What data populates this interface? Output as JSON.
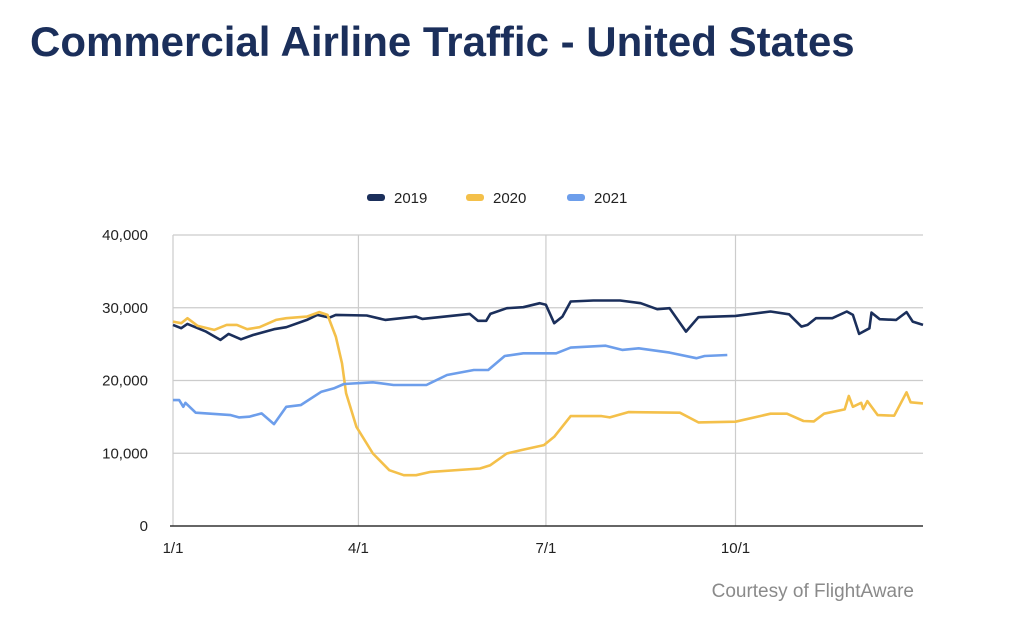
{
  "title": "Commercial Airline Traffic - United States",
  "credit": "Courtesy of FlightAware",
  "chart_data": {
    "type": "line",
    "title": "",
    "xlabel": "",
    "ylabel": "",
    "ylim": [
      0,
      40000
    ],
    "yticks": [
      "0",
      "10,000",
      "20,000",
      "30,000",
      "40,000"
    ],
    "xticks": [
      {
        "date": "01-01",
        "label": "1/1"
      },
      {
        "date": "04-01",
        "label": "4/1"
      },
      {
        "date": "07-01",
        "label": "7/1"
      },
      {
        "date": "10-01",
        "label": "10/1"
      }
    ],
    "xlim": [
      "01-01",
      "12-31"
    ],
    "grid": true,
    "legend": "top",
    "series": [
      {
        "name": "2019",
        "color": "#1b2f5b",
        "points": [
          [
            "01-01",
            27640
          ],
          [
            "01-05",
            27190
          ],
          [
            "01-08",
            27780
          ],
          [
            "01-17",
            26720
          ],
          [
            "01-24",
            25580
          ],
          [
            "01-28",
            26400
          ],
          [
            "02-03",
            25670
          ],
          [
            "02-09",
            26270
          ],
          [
            "02-19",
            27050
          ],
          [
            "02-25",
            27330
          ],
          [
            "03-07",
            28330
          ],
          [
            "03-12",
            29020
          ],
          [
            "03-18",
            28650
          ],
          [
            "03-21",
            29020
          ],
          [
            "04-05",
            28930
          ],
          [
            "04-14",
            28330
          ],
          [
            "04-29",
            28790
          ],
          [
            "05-02",
            28470
          ],
          [
            "05-25",
            29160
          ],
          [
            "05-29",
            28200
          ],
          [
            "06-02",
            28200
          ],
          [
            "06-04",
            29160
          ],
          [
            "06-12",
            29940
          ],
          [
            "06-20",
            30080
          ],
          [
            "06-28",
            30630
          ],
          [
            "07-01",
            30400
          ],
          [
            "07-05",
            27880
          ],
          [
            "07-09",
            28790
          ],
          [
            "07-13",
            30860
          ],
          [
            "07-24",
            30990
          ],
          [
            "08-06",
            30990
          ],
          [
            "08-16",
            30630
          ],
          [
            "08-24",
            29800
          ],
          [
            "08-30",
            29940
          ],
          [
            "09-07",
            26720
          ],
          [
            "09-13",
            28700
          ],
          [
            "10-01",
            28880
          ],
          [
            "10-18",
            29480
          ],
          [
            "10-27",
            29100
          ],
          [
            "11-02",
            27410
          ],
          [
            "11-05",
            27640
          ],
          [
            "11-09",
            28560
          ],
          [
            "11-17",
            28560
          ],
          [
            "11-24",
            29480
          ],
          [
            "11-27",
            29020
          ],
          [
            "11-30",
            26400
          ],
          [
            "12-05",
            27180
          ],
          [
            "12-06",
            29340
          ],
          [
            "12-10",
            28420
          ],
          [
            "12-18",
            28330
          ],
          [
            "12-23",
            29400
          ],
          [
            "12-26",
            28100
          ],
          [
            "12-31",
            27640
          ]
        ]
      },
      {
        "name": "2020",
        "color": "#f4c04a",
        "points": [
          [
            "01-01",
            28100
          ],
          [
            "01-05",
            27880
          ],
          [
            "01-08",
            28560
          ],
          [
            "01-13",
            27500
          ],
          [
            "01-21",
            26950
          ],
          [
            "01-27",
            27640
          ],
          [
            "02-01",
            27640
          ],
          [
            "02-06",
            27050
          ],
          [
            "02-12",
            27330
          ],
          [
            "02-20",
            28330
          ],
          [
            "02-25",
            28560
          ],
          [
            "03-07",
            28790
          ],
          [
            "03-13",
            29400
          ],
          [
            "03-17",
            29020
          ],
          [
            "03-21",
            26030
          ],
          [
            "03-24",
            22370
          ],
          [
            "03-26",
            18240
          ],
          [
            "03-31",
            13640
          ],
          [
            "04-08",
            9970
          ],
          [
            "04-16",
            7670
          ],
          [
            "04-23",
            6980
          ],
          [
            "04-29",
            6980
          ],
          [
            "05-06",
            7440
          ],
          [
            "05-30",
            7900
          ],
          [
            "06-04",
            8360
          ],
          [
            "06-12",
            9970
          ],
          [
            "06-19",
            10430
          ],
          [
            "06-30",
            11120
          ],
          [
            "07-05",
            12260
          ],
          [
            "07-13",
            15110
          ],
          [
            "07-28",
            15110
          ],
          [
            "08-01",
            14930
          ],
          [
            "08-10",
            15660
          ],
          [
            "09-04",
            15570
          ],
          [
            "09-13",
            14240
          ],
          [
            "10-01",
            14330
          ],
          [
            "10-18",
            15430
          ],
          [
            "10-26",
            15430
          ],
          [
            "11-03",
            14430
          ],
          [
            "11-08",
            14380
          ],
          [
            "11-13",
            15430
          ],
          [
            "11-23",
            16030
          ],
          [
            "11-25",
            17870
          ],
          [
            "11-27",
            16390
          ],
          [
            "12-01",
            16940
          ],
          [
            "12-02",
            16080
          ],
          [
            "12-04",
            17170
          ],
          [
            "12-09",
            15250
          ],
          [
            "12-17",
            15160
          ],
          [
            "12-23",
            18380
          ],
          [
            "12-25",
            17000
          ],
          [
            "12-31",
            16850
          ]
        ]
      },
      {
        "name": "2021",
        "color": "#6d9eeb",
        "points": [
          [
            "01-01",
            17310
          ],
          [
            "01-04",
            17310
          ],
          [
            "01-06",
            16390
          ],
          [
            "01-07",
            16940
          ],
          [
            "01-12",
            15570
          ],
          [
            "01-29",
            15250
          ],
          [
            "02-02",
            14930
          ],
          [
            "02-07",
            15020
          ],
          [
            "02-13",
            15480
          ],
          [
            "02-19",
            14010
          ],
          [
            "02-25",
            16390
          ],
          [
            "03-04",
            16620
          ],
          [
            "03-14",
            18460
          ],
          [
            "03-20",
            18920
          ],
          [
            "03-25",
            19520
          ],
          [
            "04-08",
            19750
          ],
          [
            "04-18",
            19380
          ],
          [
            "05-04",
            19380
          ],
          [
            "05-14",
            20760
          ],
          [
            "05-27",
            21450
          ],
          [
            "06-03",
            21450
          ],
          [
            "06-11",
            23370
          ],
          [
            "06-20",
            23740
          ],
          [
            "07-06",
            23740
          ],
          [
            "07-13",
            24520
          ],
          [
            "07-30",
            24790
          ],
          [
            "08-07",
            24200
          ],
          [
            "08-15",
            24430
          ],
          [
            "08-30",
            23830
          ],
          [
            "09-12",
            23060
          ],
          [
            "09-16",
            23370
          ],
          [
            "09-27",
            23510
          ]
        ]
      }
    ]
  }
}
